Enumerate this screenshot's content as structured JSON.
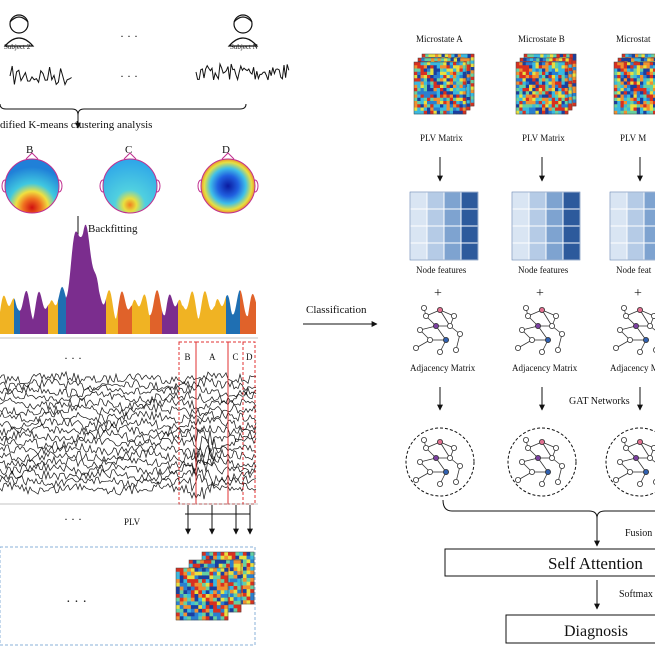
{
  "subjects": {
    "subject_2": "Subject 2",
    "subject_n": "Subject N",
    "ellipsis": "· · ·"
  },
  "steps": {
    "clustering": "dified K-means  clustering analysis",
    "backfitting": "Backfitting",
    "classification": "Classification",
    "plv": "PLV",
    "ellipsis": "· · ·"
  },
  "topomaps": [
    {
      "label": "B",
      "scheme": "red-bottom"
    },
    {
      "label": "C",
      "scheme": "cyan"
    },
    {
      "label": "D",
      "scheme": "blue-center"
    }
  ],
  "segments": [
    "B",
    "A",
    "C",
    "D"
  ],
  "microstates": [
    {
      "title": "Microstate A",
      "plv": "PLV Matrix",
      "node": "Node features",
      "adj": "Adjacency Matrix"
    },
    {
      "title": "Microstate B",
      "plv": "PLV Matrix",
      "node": "Node features",
      "adj": "Adjacency Matrix"
    },
    {
      "title": "Microstat",
      "plv": "PLV M",
      "node": "Node feat",
      "adj": "Adjacency M"
    }
  ],
  "plus": "+",
  "gat": "GAT Networks",
  "fusion": "Fusion",
  "self_attention": "Self Attention",
  "softmax": "Softmax",
  "diagnosis": "Diagnosis",
  "colors": {
    "purple": "#7b2d8e",
    "yellow": "#f0b323",
    "blue": "#1f6fb2",
    "orange": "#e0622a",
    "red_dash": "#e03030",
    "node_blues": [
      "#d9e5f3",
      "#b5cbe6",
      "#7ea3d0",
      "#2d5a9c"
    ]
  }
}
